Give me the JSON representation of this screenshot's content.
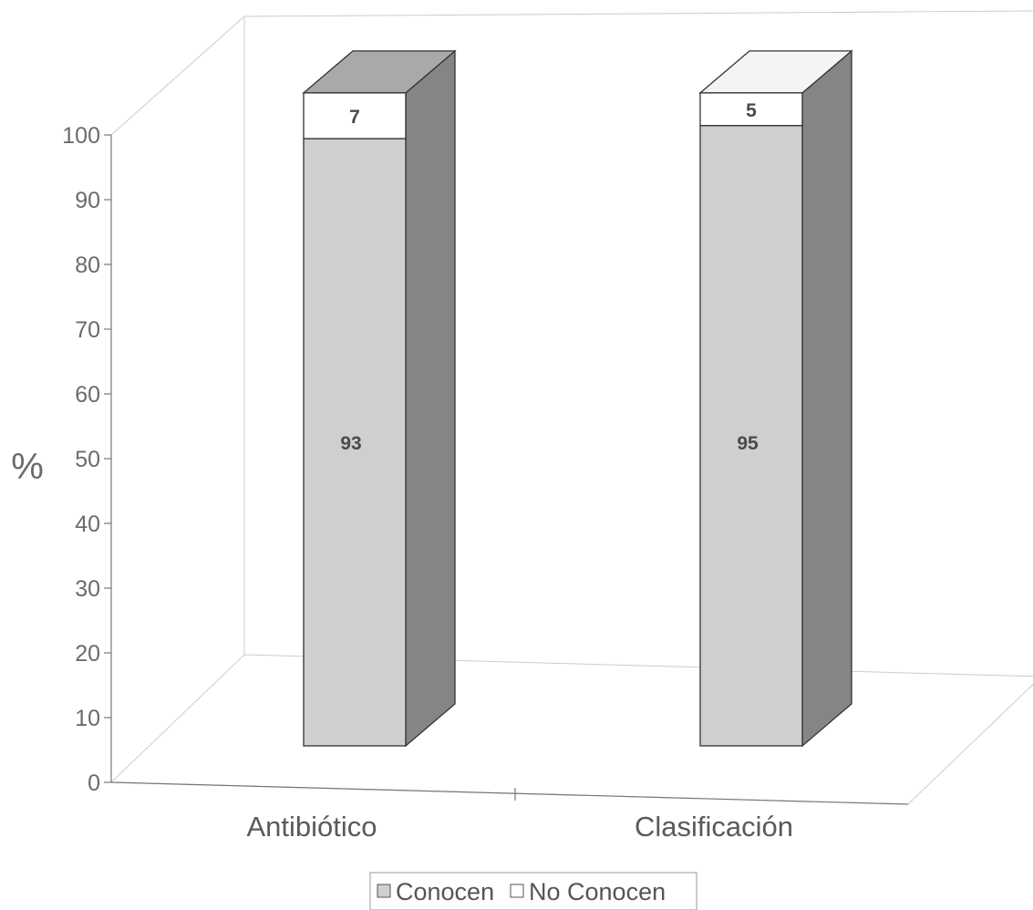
{
  "chart_data": {
    "type": "bar",
    "stacked": true,
    "three_d": true,
    "categories": [
      "Antibiótico",
      "Clasificación"
    ],
    "series": [
      {
        "name": "Conocen",
        "values": [
          93,
          95
        ],
        "color": "#cfcfcf"
      },
      {
        "name": "No Conocen",
        "values": [
          7,
          5
        ],
        "color": "#ffffff"
      }
    ],
    "ylabel": "%",
    "ylim": [
      0,
      100
    ],
    "yticks": [
      0,
      10,
      20,
      30,
      40,
      50,
      60,
      70,
      80,
      90,
      100
    ],
    "legend": "bottom"
  }
}
